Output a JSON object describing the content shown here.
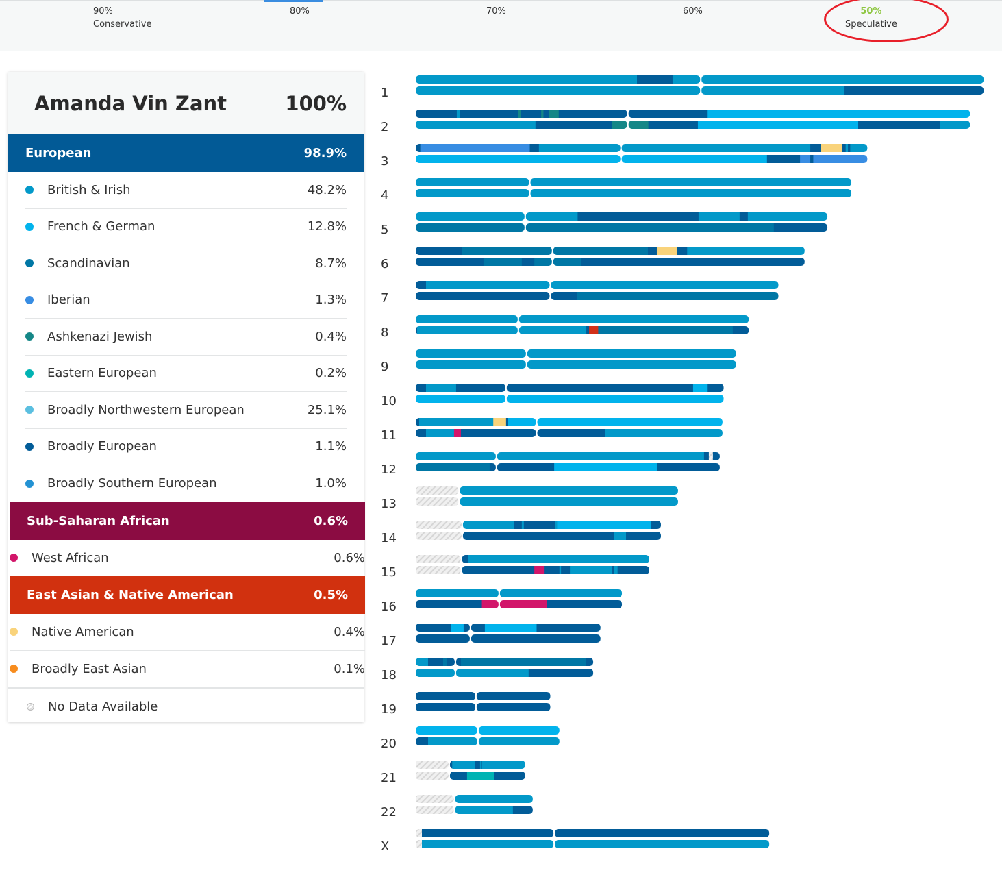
{
  "confidence_levels": [
    {
      "percent": "90%",
      "label": "Conservative"
    },
    {
      "percent": "80%",
      "label": ""
    },
    {
      "percent": "70%",
      "label": ""
    },
    {
      "percent": "60%",
      "label": ""
    },
    {
      "percent": "50%",
      "label": "Speculative",
      "selected": true
    }
  ],
  "person": {
    "name": "Amanda Vin Zant",
    "total": "100%"
  },
  "groups": [
    {
      "name": "European",
      "percent": "98.9%",
      "color": "#025a96",
      "items": [
        {
          "name": "British & Irish",
          "percent": "48.2%",
          "color": "#0399c9"
        },
        {
          "name": "French & German",
          "percent": "12.8%",
          "color": "#02b3ec"
        },
        {
          "name": "Scandinavian",
          "percent": "8.7%",
          "color": "#0077a5"
        },
        {
          "name": "Iberian",
          "percent": "1.3%",
          "color": "#388de3"
        },
        {
          "name": "Ashkenazi Jewish",
          "percent": "0.4%",
          "color": "#158787"
        },
        {
          "name": "Eastern European",
          "percent": "0.2%",
          "color": "#00b3b3"
        },
        {
          "name": "Broadly Northwestern European",
          "percent": "25.1%",
          "color": "#5bbfe0"
        },
        {
          "name": "Broadly European",
          "percent": "1.1%",
          "color": "#025c98"
        },
        {
          "name": "Broadly Southern European",
          "percent": "1.0%",
          "color": "#2392d3"
        }
      ]
    },
    {
      "name": "Sub-Saharan African",
      "percent": "0.6%",
      "color": "#8b0c42",
      "items": [
        {
          "name": "West African",
          "percent": "0.6%",
          "color": "#d2166a"
        }
      ]
    },
    {
      "name": "East Asian & Native American",
      "percent": "0.5%",
      "color": "#d1310f",
      "items": [
        {
          "name": "Native American",
          "percent": "0.4%",
          "color": "#f9d37b"
        },
        {
          "name": "Broadly East Asian",
          "percent": "0.1%",
          "color": "#f78c1e"
        }
      ]
    }
  ],
  "no_data": {
    "label": "No Data Available",
    "color": "#d8d8d8"
  },
  "painting_colors": {
    "BI": "#0399c9",
    "FG": "#02b3ec",
    "SC": "#0077a5",
    "IB": "#388de3",
    "AJ": "#158787",
    "EE": "#00b3b3",
    "DK": "#025c98",
    "NA": "#f9d37b",
    "WA": "#d2166a",
    "EA": "#d2311a",
    "ND": "hatch"
  },
  "chromosomes": [
    {
      "label": "1",
      "length": 249,
      "centromere": 125,
      "haplotypes": [
        [
          [
            0,
            97,
            "BI"
          ],
          [
            97,
            112.6,
            "DK"
          ],
          [
            112.6,
            249,
            "BI"
          ]
        ],
        [
          [
            0,
            188,
            "BI"
          ],
          [
            188,
            249,
            "DK"
          ]
        ]
      ]
    },
    {
      "label": "2",
      "length": 243,
      "centromere": 93,
      "haplotypes": [
        [
          [
            0,
            18,
            "DK"
          ],
          [
            18,
            19.5,
            "BI"
          ],
          [
            19.5,
            45,
            "DK"
          ],
          [
            45,
            46,
            "AJ"
          ],
          [
            46,
            55,
            "DK"
          ],
          [
            55,
            56,
            "AJ"
          ],
          [
            56,
            58.5,
            "DK"
          ],
          [
            58.5,
            62.7,
            "AJ"
          ],
          [
            62.7,
            128,
            "DK"
          ],
          [
            128,
            243,
            "FG"
          ]
        ],
        [
          [
            0,
            52.5,
            "BI"
          ],
          [
            52.5,
            86,
            "DK"
          ],
          [
            86,
            102,
            "AJ"
          ],
          [
            102,
            123.7,
            "DK"
          ],
          [
            123.7,
            194,
            "FG"
          ],
          [
            194,
            230,
            "DK"
          ],
          [
            230,
            243,
            "BI"
          ]
        ]
      ]
    },
    {
      "label": "3",
      "length": 198,
      "centromere": 90,
      "haplotypes": [
        [
          [
            0,
            2,
            "DK"
          ],
          [
            2,
            50,
            "IB"
          ],
          [
            50,
            54,
            "DK"
          ],
          [
            54,
            173,
            "BI"
          ],
          [
            173,
            177.5,
            "DK"
          ],
          [
            177.5,
            187,
            "NA"
          ],
          [
            187,
            188.5,
            "DK"
          ],
          [
            188.5,
            189.5,
            "BI"
          ],
          [
            189.5,
            190.5,
            "DK"
          ],
          [
            190.5,
            198,
            "BI"
          ]
        ],
        [
          [
            0,
            154,
            "FG"
          ],
          [
            154,
            168.5,
            "DK"
          ],
          [
            168.5,
            173,
            "IB"
          ],
          [
            173,
            174.3,
            "DK"
          ],
          [
            174.3,
            198,
            "IB"
          ]
        ]
      ]
    },
    {
      "label": "4",
      "length": 191,
      "centromere": 50,
      "haplotypes": [
        [
          [
            0,
            191,
            "BI"
          ]
        ],
        [
          [
            0,
            191,
            "BI"
          ]
        ]
      ]
    },
    {
      "label": "5",
      "length": 180.5,
      "centromere": 48,
      "haplotypes": [
        [
          [
            0,
            71,
            "BI"
          ],
          [
            71,
            72.7,
            "DK"
          ],
          [
            72.7,
            124,
            "DK"
          ],
          [
            124,
            142,
            "BI"
          ],
          [
            142,
            145.6,
            "DK"
          ],
          [
            145.6,
            180.5,
            "BI"
          ]
        ],
        [
          [
            0,
            157,
            "SC"
          ],
          [
            157,
            180.5,
            "DK"
          ]
        ]
      ]
    },
    {
      "label": "6",
      "length": 170.5,
      "centromere": 60,
      "haplotypes": [
        [
          [
            0,
            20.4,
            "DK"
          ],
          [
            20.4,
            101.8,
            "SC"
          ],
          [
            101.8,
            105.7,
            "DK"
          ],
          [
            105.7,
            114.7,
            "NA"
          ],
          [
            114.7,
            119,
            "DK"
          ],
          [
            119,
            170.5,
            "BI"
          ]
        ],
        [
          [
            0,
            29.7,
            "DK"
          ],
          [
            29.7,
            46.5,
            "SC"
          ],
          [
            46.5,
            52,
            "DK"
          ],
          [
            52,
            72.4,
            "SC"
          ],
          [
            72.4,
            170.5,
            "DK"
          ]
        ]
      ]
    },
    {
      "label": "7",
      "length": 159,
      "centromere": 59,
      "haplotypes": [
        [
          [
            0,
            4.5,
            "DK"
          ],
          [
            4.5,
            159,
            "BI"
          ]
        ],
        [
          [
            0,
            70.6,
            "DK"
          ],
          [
            70.6,
            159,
            "SC"
          ]
        ]
      ]
    },
    {
      "label": "8",
      "length": 146,
      "centromere": 45,
      "haplotypes": [
        [
          [
            0,
            146,
            "BI"
          ]
        ],
        [
          [
            0,
            0.6,
            "DK"
          ],
          [
            0.6,
            74.8,
            "BI"
          ],
          [
            74.8,
            76,
            "DK"
          ],
          [
            76,
            80,
            "EA"
          ],
          [
            80,
            139,
            "SC"
          ],
          [
            139,
            146,
            "DK"
          ]
        ]
      ]
    },
    {
      "label": "9",
      "length": 140.5,
      "centromere": 48.6,
      "haplotypes": [
        [
          [
            0,
            140.5,
            "BI"
          ]
        ],
        [
          [
            0,
            140.5,
            "BI"
          ]
        ]
      ]
    },
    {
      "label": "10",
      "length": 135,
      "centromere": 39.6,
      "haplotypes": [
        [
          [
            0,
            4.5,
            "DK"
          ],
          [
            4.5,
            17.7,
            "BI"
          ],
          [
            17.7,
            121.6,
            "DK"
          ],
          [
            121.6,
            128,
            "FG"
          ],
          [
            128,
            135,
            "DK"
          ]
        ],
        [
          [
            0,
            135,
            "FG"
          ]
        ]
      ]
    },
    {
      "label": "11",
      "length": 134.5,
      "centromere": 53,
      "haplotypes": [
        [
          [
            0,
            1.5,
            "DK"
          ],
          [
            1.5,
            34,
            "BI"
          ],
          [
            34,
            39.6,
            "NA"
          ],
          [
            39.6,
            40.5,
            "DK"
          ],
          [
            40.5,
            134.5,
            "FG"
          ]
        ],
        [
          [
            0,
            4.5,
            "DK"
          ],
          [
            4.5,
            16.8,
            "BI"
          ],
          [
            16.8,
            19.8,
            "WA"
          ],
          [
            19.8,
            83,
            "DK"
          ],
          [
            83,
            134.5,
            "BI"
          ]
        ]
      ]
    },
    {
      "label": "12",
      "length": 133.3,
      "centromere": 35.4,
      "haplotypes": [
        [
          [
            0,
            126.4,
            "BI"
          ],
          [
            126.4,
            128.5,
            "DK"
          ],
          [
            128.5,
            130.3,
            "ND"
          ],
          [
            130.3,
            133.3,
            "DK"
          ]
        ],
        [
          [
            0,
            32.4,
            "SC"
          ],
          [
            32.4,
            60.7,
            "DK"
          ],
          [
            60.7,
            105.7,
            "FG"
          ],
          [
            105.7,
            133.3,
            "DK"
          ]
        ]
      ]
    },
    {
      "label": "13",
      "length": 115,
      "centromere": 19,
      "haplotypes": [
        [
          [
            0,
            19,
            "ND"
          ],
          [
            19,
            115,
            "BI"
          ]
        ],
        [
          [
            0,
            19,
            "ND"
          ],
          [
            19,
            115,
            "BI"
          ]
        ]
      ]
    },
    {
      "label": "14",
      "length": 107.5,
      "centromere": 20.4,
      "haplotypes": [
        [
          [
            0,
            20.4,
            "ND"
          ],
          [
            20.4,
            43.2,
            "BI"
          ],
          [
            43.2,
            46.5,
            "DK"
          ],
          [
            46.5,
            47.4,
            "BI"
          ],
          [
            47.4,
            61,
            "DK"
          ],
          [
            61,
            62,
            "BI"
          ],
          [
            62,
            103,
            "FG"
          ],
          [
            103,
            107.5,
            "DK"
          ]
        ],
        [
          [
            0,
            20.4,
            "ND"
          ],
          [
            20.4,
            86.8,
            "DK"
          ],
          [
            86.8,
            92.2,
            "BI"
          ],
          [
            92.2,
            107.5,
            "DK"
          ]
        ]
      ]
    },
    {
      "label": "15",
      "length": 102.4,
      "centromere": 20,
      "haplotypes": [
        [
          [
            0,
            20,
            "ND"
          ],
          [
            20,
            23,
            "DK"
          ],
          [
            23,
            102.4,
            "BI"
          ]
        ],
        [
          [
            0,
            20,
            "ND"
          ],
          [
            20,
            52,
            "DK"
          ],
          [
            52,
            56.5,
            "WA"
          ],
          [
            56.5,
            63,
            "DK"
          ],
          [
            63,
            63.7,
            "BI"
          ],
          [
            63.7,
            67.6,
            "DK"
          ],
          [
            67.6,
            86.2,
            "BI"
          ],
          [
            86.2,
            87,
            "DK"
          ],
          [
            87,
            88.5,
            "BI"
          ],
          [
            88.5,
            102.4,
            "DK"
          ]
        ]
      ]
    },
    {
      "label": "16",
      "length": 90.4,
      "centromere": 36.6,
      "haplotypes": [
        [
          [
            0,
            90.4,
            "BI"
          ]
        ],
        [
          [
            0,
            29,
            "DK"
          ],
          [
            29,
            57.4,
            "WA"
          ],
          [
            57.4,
            90.4,
            "DK"
          ]
        ]
      ]
    },
    {
      "label": "17",
      "length": 81,
      "centromere": 24,
      "haplotypes": [
        [
          [
            0,
            15.3,
            "DK"
          ],
          [
            15.3,
            21,
            "FG"
          ],
          [
            21,
            30.3,
            "DK"
          ],
          [
            30.3,
            53,
            "FG"
          ],
          [
            53,
            81,
            "DK"
          ]
        ],
        [
          [
            0,
            81,
            "DK"
          ]
        ]
      ]
    },
    {
      "label": "18",
      "length": 77.8,
      "centromere": 17.4,
      "haplotypes": [
        [
          [
            0,
            5.4,
            "BI"
          ],
          [
            5.4,
            12,
            "DK"
          ],
          [
            12,
            13.5,
            "SC"
          ],
          [
            13.5,
            19.8,
            "DK"
          ],
          [
            19.8,
            74.5,
            "SC"
          ],
          [
            74.5,
            77.8,
            "DK"
          ]
        ],
        [
          [
            0,
            49.5,
            "BI"
          ],
          [
            49.5,
            77.8,
            "DK"
          ]
        ]
      ]
    },
    {
      "label": "19",
      "length": 59,
      "centromere": 26.4,
      "haplotypes": [
        [
          [
            0,
            59,
            "DK"
          ]
        ],
        [
          [
            0,
            59,
            "DK"
          ]
        ]
      ]
    },
    {
      "label": "20",
      "length": 63,
      "centromere": 27.3,
      "haplotypes": [
        [
          [
            0,
            63,
            "FG"
          ]
        ],
        [
          [
            0,
            5.4,
            "DK"
          ],
          [
            5.4,
            63,
            "BI"
          ]
        ]
      ]
    },
    {
      "label": "21",
      "length": 48,
      "centromere": 14.7,
      "haplotypes": [
        [
          [
            0,
            14.7,
            "ND"
          ],
          [
            14.7,
            16,
            "DK"
          ],
          [
            16,
            26,
            "BI"
          ],
          [
            26,
            28.2,
            "DK"
          ],
          [
            28.2,
            28.6,
            "BI"
          ],
          [
            28.6,
            29,
            "DK"
          ],
          [
            29,
            48,
            "BI"
          ]
        ],
        [
          [
            0,
            14.7,
            "ND"
          ],
          [
            14.7,
            22.5,
            "DK"
          ],
          [
            22.5,
            34.5,
            "EE"
          ],
          [
            34.5,
            48,
            "DK"
          ]
        ]
      ]
    },
    {
      "label": "22",
      "length": 51.3,
      "centromere": 17,
      "haplotypes": [
        [
          [
            0,
            17,
            "ND"
          ],
          [
            17,
            51.3,
            "BI"
          ]
        ],
        [
          [
            0,
            17,
            "ND"
          ],
          [
            17,
            42.6,
            "BI"
          ],
          [
            42.6,
            51.3,
            "DK"
          ]
        ]
      ]
    },
    {
      "label": "X",
      "length": 155,
      "centromere": 60.7,
      "haplotypes": [
        [
          [
            0,
            2.7,
            "ND"
          ],
          [
            2.7,
            155,
            "DK"
          ]
        ],
        [
          [
            0,
            2.7,
            "ND"
          ],
          [
            2.7,
            155,
            "BI"
          ]
        ]
      ]
    }
  ]
}
